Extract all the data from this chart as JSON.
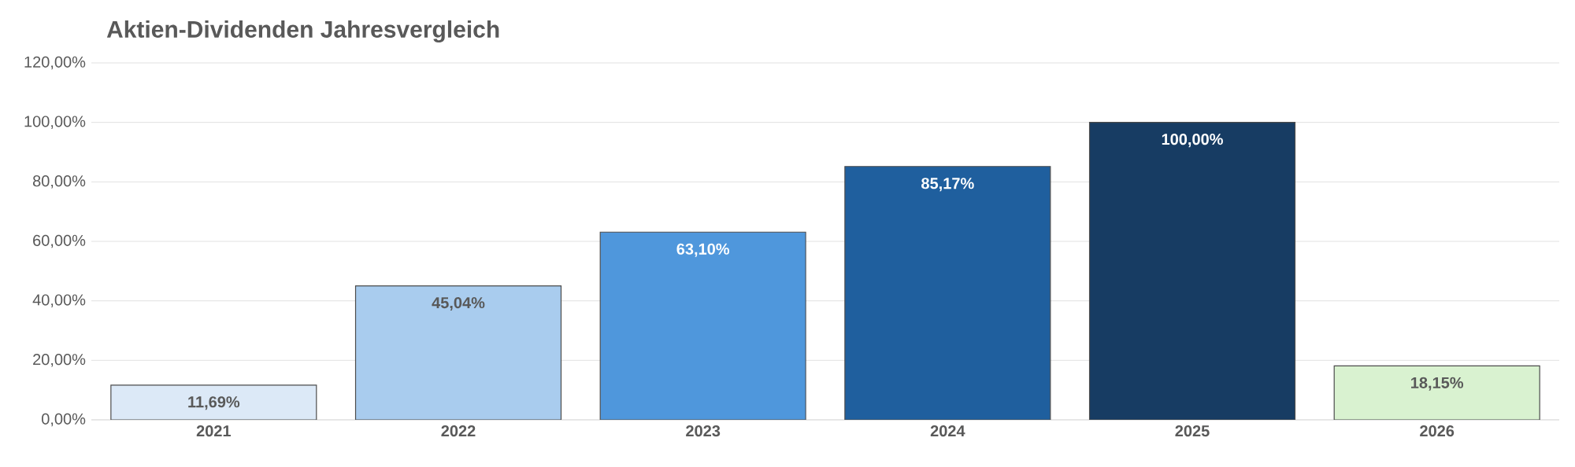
{
  "chart_data": {
    "type": "bar",
    "title": "Aktien-Dividenden Jahresvergleich",
    "categories": [
      "2021",
      "2022",
      "2023",
      "2024",
      "2025",
      "2026"
    ],
    "values": [
      11.69,
      45.04,
      63.1,
      85.17,
      100.0,
      18.15
    ],
    "colors": [
      "#dce9f7",
      "#a9ccee",
      "#4f97dc",
      "#1f5f9e",
      "#173c63",
      "#d9f2d0"
    ],
    "value_labels": [
      "11,69%",
      "45,04%",
      "63,10%",
      "85,17%",
      "100,00%",
      "18,15%"
    ],
    "ylim": [
      0,
      120
    ],
    "yticks": [
      {
        "value": 0,
        "label": "0,00%"
      },
      {
        "value": 20,
        "label": "20,00%"
      },
      {
        "value": 40,
        "label": "40,00%"
      },
      {
        "value": 60,
        "label": "60,00%"
      },
      {
        "value": 80,
        "label": "80,00%"
      },
      {
        "value": 100,
        "label": "100,00%"
      },
      {
        "value": 120,
        "label": "120,00%"
      }
    ],
    "grid": "y"
  }
}
